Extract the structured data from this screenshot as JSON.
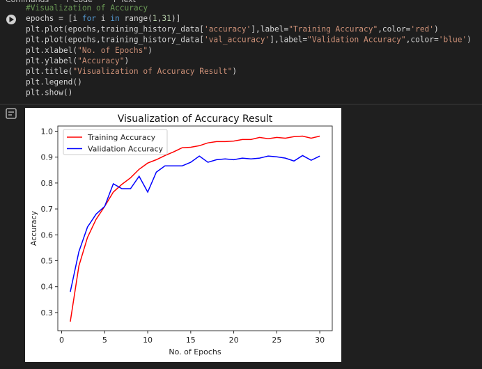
{
  "toolbar": {
    "items": [
      "Commands",
      "+ Code",
      "+ Text"
    ]
  },
  "code_lines": [
    {
      "tokens": [
        {
          "text": "#Visualization of Accuracy",
          "color": "#6a9955"
        }
      ]
    },
    {
      "tokens": [
        {
          "text": "epochs = [i ",
          "color": "#d4d4d4"
        },
        {
          "text": "for",
          "color": "#569cd6"
        },
        {
          "text": " i ",
          "color": "#d4d4d4"
        },
        {
          "text": "in",
          "color": "#569cd6"
        },
        {
          "text": " range(",
          "color": "#d4d4d4"
        },
        {
          "text": "1",
          "color": "#b5cea8"
        },
        {
          "text": ",",
          "color": "#d4d4d4"
        },
        {
          "text": "31",
          "color": "#b5cea8"
        },
        {
          "text": ")]",
          "color": "#d4d4d4"
        }
      ]
    },
    {
      "tokens": [
        {
          "text": "plt.plot(epochs,training_history_data[",
          "color": "#d4d4d4"
        },
        {
          "text": "'accuracy'",
          "color": "#ce9178"
        },
        {
          "text": "],label=",
          "color": "#d4d4d4"
        },
        {
          "text": "\"Training Accuracy\"",
          "color": "#ce9178"
        },
        {
          "text": ",color=",
          "color": "#d4d4d4"
        },
        {
          "text": "'red'",
          "color": "#ce9178"
        },
        {
          "text": ")",
          "color": "#d4d4d4"
        }
      ]
    },
    {
      "tokens": [
        {
          "text": "plt.plot(epochs,training_history_data[",
          "color": "#d4d4d4"
        },
        {
          "text": "'val_accuracy'",
          "color": "#ce9178"
        },
        {
          "text": "],label=",
          "color": "#d4d4d4"
        },
        {
          "text": "\"Validation Accuracy\"",
          "color": "#ce9178"
        },
        {
          "text": ",color=",
          "color": "#d4d4d4"
        },
        {
          "text": "'blue'",
          "color": "#ce9178"
        },
        {
          "text": ")",
          "color": "#d4d4d4"
        }
      ]
    },
    {
      "tokens": [
        {
          "text": "plt.xlabel(",
          "color": "#d4d4d4"
        },
        {
          "text": "\"No. of Epochs\"",
          "color": "#ce9178"
        },
        {
          "text": ")",
          "color": "#d4d4d4"
        }
      ]
    },
    {
      "tokens": [
        {
          "text": "plt.ylabel(",
          "color": "#d4d4d4"
        },
        {
          "text": "\"Accuracy\"",
          "color": "#ce9178"
        },
        {
          "text": ")",
          "color": "#d4d4d4"
        }
      ]
    },
    {
      "tokens": [
        {
          "text": "plt.title(",
          "color": "#d4d4d4"
        },
        {
          "text": "\"Visualization of Accuracy Result\"",
          "color": "#ce9178"
        },
        {
          "text": ")",
          "color": "#d4d4d4"
        }
      ]
    },
    {
      "tokens": [
        {
          "text": "plt.legend()",
          "color": "#d4d4d4"
        }
      ]
    },
    {
      "tokens": [
        {
          "text": "plt.show()",
          "color": "#d4d4d4"
        }
      ]
    }
  ],
  "chart_data": {
    "type": "line",
    "title": "Visualization of Accuracy Result",
    "x_label": "No. of Epochs",
    "y_label": "Accuracy",
    "x": [
      1,
      2,
      3,
      4,
      5,
      6,
      7,
      8,
      9,
      10,
      11,
      12,
      13,
      14,
      15,
      16,
      17,
      18,
      19,
      20,
      21,
      22,
      23,
      24,
      25,
      26,
      27,
      28,
      29,
      30
    ],
    "series": [
      {
        "name": "Training Accuracy",
        "color": "red",
        "values": [
          0.265,
          0.48,
          0.59,
          0.66,
          0.71,
          0.765,
          0.795,
          0.82,
          0.853,
          0.877,
          0.89,
          0.906,
          0.92,
          0.936,
          0.938,
          0.944,
          0.955,
          0.96,
          0.96,
          0.962,
          0.968,
          0.968,
          0.976,
          0.971,
          0.976,
          0.973,
          0.979,
          0.981,
          0.973,
          0.981
        ]
      },
      {
        "name": "Validation Accuracy",
        "color": "blue",
        "values": [
          0.38,
          0.535,
          0.63,
          0.68,
          0.71,
          0.797,
          0.778,
          0.778,
          0.826,
          0.765,
          0.842,
          0.866,
          0.866,
          0.866,
          0.88,
          0.904,
          0.88,
          0.89,
          0.893,
          0.89,
          0.896,
          0.893,
          0.896,
          0.904,
          0.901,
          0.896,
          0.885,
          0.906,
          0.888,
          0.904
        ]
      }
    ],
    "xlim": [
      -0.45,
      31.45
    ],
    "xticks": [
      0,
      5,
      10,
      15,
      20,
      25,
      30
    ],
    "ylim": [
      0.23,
      1.02
    ],
    "yticks": [
      0.3,
      0.4,
      0.5,
      0.6,
      0.7,
      0.8,
      0.9,
      {
        "value": 1.0,
        "label": "1.0"
      }
    ],
    "grid": false,
    "legend": "upper left"
  }
}
